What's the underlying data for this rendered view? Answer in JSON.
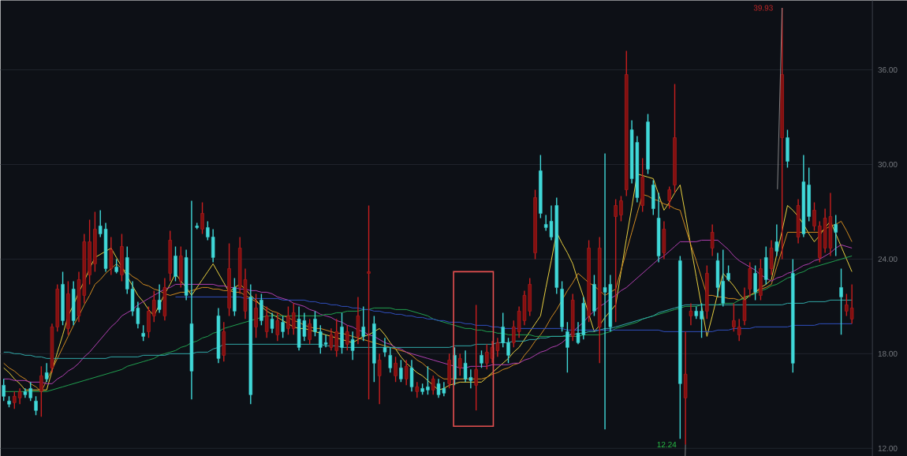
{
  "chart_data": {
    "type": "candlestick",
    "categories": [
      null,
      null,
      null,
      null,
      null,
      null,
      null,
      null,
      null,
      null,
      null,
      null,
      null,
      null,
      null,
      null,
      null,
      null,
      null,
      null,
      null,
      null,
      null,
      null,
      null,
      null,
      null,
      null,
      null,
      null,
      null,
      null,
      null,
      null,
      null,
      null,
      null,
      null,
      null,
      null,
      null,
      null,
      null,
      null,
      null,
      null,
      null,
      null,
      null,
      null,
      null,
      null,
      null,
      null,
      null,
      null,
      null,
      null,
      null,
      null,
      null,
      null,
      null,
      null,
      null,
      null,
      null,
      null,
      null,
      null,
      null,
      null,
      null,
      null,
      null,
      null,
      null,
      null,
      null,
      null,
      null,
      null,
      null,
      null,
      null,
      null,
      null,
      null,
      null,
      null,
      null,
      null,
      null,
      null,
      null,
      null,
      null,
      null,
      null,
      null,
      null,
      null,
      null,
      null,
      null,
      null,
      null,
      null,
      null,
      null,
      null,
      null,
      null,
      null,
      null,
      null,
      null,
      null,
      null,
      null,
      null,
      null,
      null,
      null,
      null,
      null,
      null,
      null,
      null,
      null,
      null,
      null,
      null,
      null,
      null,
      null,
      null,
      null,
      null,
      null,
      null,
      null,
      null,
      null,
      null,
      null,
      null,
      null,
      null,
      null,
      null,
      null,
      null,
      null,
      null,
      null,
      null,
      null,
      null
    ],
    "ohlc": [
      [
        16.0,
        16.4,
        15.0,
        15.3
      ],
      [
        15.0,
        15.3,
        14.6,
        14.8
      ],
      [
        14.9,
        15.6,
        14.5,
        15.3
      ],
      [
        15.2,
        15.8,
        14.8,
        15.6
      ],
      [
        15.6,
        15.8,
        15.2,
        15.4
      ],
      [
        15.8,
        16.2,
        15.0,
        15.2
      ],
      [
        15.0,
        15.3,
        14.1,
        14.4
      ],
      [
        15.6,
        17.2,
        14.0,
        16.6
      ],
      [
        16.8,
        17.4,
        16.2,
        16.4
      ],
      [
        17.1,
        19.9,
        16.8,
        19.7
      ],
      [
        19.7,
        22.4,
        19.4,
        22.1
      ],
      [
        22.4,
        23.2,
        19.8,
        20.1
      ],
      [
        19.6,
        22.6,
        19.2,
        21.8
      ],
      [
        22.1,
        22.6,
        19.8,
        20.1
      ],
      [
        20.4,
        23.2,
        20.0,
        22.7
      ],
      [
        21.7,
        25.6,
        21.2,
        25.1
      ],
      [
        23.0,
        26.5,
        22.4,
        25.1
      ],
      [
        23.7,
        27.0,
        23.2,
        25.9
      ],
      [
        26.1,
        27.1,
        25.4,
        25.6
      ],
      [
        25.9,
        26.3,
        23.2,
        23.4
      ],
      [
        23.4,
        25.4,
        23.0,
        24.6
      ],
      [
        23.5,
        24.0,
        23.1,
        23.2
      ],
      [
        23.0,
        25.6,
        22.6,
        24.8
      ],
      [
        24.1,
        24.8,
        21.8,
        22.1
      ],
      [
        22.1,
        22.6,
        20.4,
        20.7
      ],
      [
        20.9,
        21.3,
        19.6,
        19.9
      ],
      [
        19.3,
        19.8,
        18.8,
        19.1
      ],
      [
        19.4,
        21.0,
        19.0,
        20.7
      ],
      [
        20.4,
        22.0,
        20.0,
        21.4
      ],
      [
        21.4,
        22.4,
        20.6,
        20.8
      ],
      [
        20.4,
        22.8,
        20.1,
        22.2
      ],
      [
        23.1,
        25.8,
        22.6,
        25.2
      ],
      [
        24.2,
        24.8,
        22.6,
        22.9
      ],
      [
        22.6,
        24.8,
        22.2,
        24.2
      ],
      [
        24.1,
        24.6,
        21.4,
        21.7
      ],
      [
        19.9,
        27.7,
        15.1,
        16.9
      ],
      [
        26.1,
        26.3,
        25.9,
        26.0
      ],
      [
        25.9,
        27.6,
        25.6,
        26.9
      ],
      [
        26.0,
        26.4,
        25.2,
        25.4
      ],
      [
        25.4,
        25.9,
        23.8,
        24.1
      ],
      [
        20.4,
        20.9,
        17.4,
        17.7
      ],
      [
        17.9,
        20.0,
        17.5,
        19.4
      ],
      [
        20.9,
        25.0,
        20.4,
        23.4
      ],
      [
        22.2,
        22.8,
        20.4,
        20.7
      ],
      [
        22.2,
        25.4,
        21.8,
        24.7
      ],
      [
        20.7,
        23.4,
        20.2,
        22.7
      ],
      [
        21.6,
        22.4,
        14.8,
        15.4
      ],
      [
        19.7,
        21.8,
        19.0,
        20.9
      ],
      [
        21.4,
        21.8,
        19.8,
        20.1
      ],
      [
        19.4,
        21.0,
        19.0,
        20.4
      ],
      [
        20.2,
        20.6,
        19.3,
        19.6
      ],
      [
        19.2,
        20.6,
        18.8,
        20.1
      ],
      [
        20.0,
        20.4,
        19.0,
        19.4
      ],
      [
        19.6,
        21.0,
        19.2,
        20.4
      ],
      [
        19.6,
        21.2,
        19.2,
        20.6
      ],
      [
        20.2,
        21.0,
        18.2,
        18.4
      ],
      [
        20.1,
        20.6,
        18.8,
        19.1
      ],
      [
        18.9,
        20.2,
        18.6,
        19.9
      ],
      [
        20.2,
        20.7,
        19.1,
        19.4
      ],
      [
        19.4,
        19.8,
        18.0,
        18.4
      ],
      [
        18.7,
        19.2,
        18.4,
        18.6
      ],
      [
        18.4,
        19.6,
        18.2,
        19.2
      ],
      [
        18.2,
        20.2,
        17.8,
        19.4
      ],
      [
        19.7,
        20.6,
        18.0,
        18.4
      ],
      [
        18.6,
        19.8,
        18.2,
        19.4
      ],
      [
        18.9,
        19.4,
        17.6,
        18.2
      ],
      [
        19.1,
        21.6,
        18.6,
        20.4
      ],
      [
        19.7,
        21.0,
        18.8,
        19.1
      ],
      [
        23.1,
        27.4,
        15.1,
        23.2
      ],
      [
        19.9,
        20.4,
        16.2,
        17.4
      ],
      [
        16.6,
        18.0,
        14.8,
        17.6
      ],
      [
        18.4,
        19.0,
        17.8,
        18.1
      ],
      [
        17.9,
        18.4,
        16.8,
        17.1
      ],
      [
        16.6,
        17.8,
        16.2,
        17.4
      ],
      [
        17.1,
        17.6,
        16.2,
        16.4
      ],
      [
        16.4,
        17.6,
        16.0,
        17.2
      ],
      [
        17.1,
        17.6,
        15.6,
        15.9
      ],
      [
        15.6,
        16.2,
        15.2,
        15.9
      ],
      [
        15.8,
        16.1,
        15.4,
        15.6
      ],
      [
        15.9,
        17.2,
        15.4,
        15.7
      ],
      [
        15.7,
        16.6,
        15.4,
        16.4
      ],
      [
        16.1,
        16.4,
        15.2,
        15.4
      ],
      [
        15.8,
        16.2,
        15.3,
        15.5
      ],
      [
        16.1,
        18.0,
        15.8,
        17.6
      ],
      [
        17.9,
        18.4,
        16.0,
        16.4
      ],
      [
        17.1,
        18.0,
        16.6,
        17.7
      ],
      [
        17.4,
        18.2,
        16.2,
        16.4
      ],
      [
        16.5,
        17.0,
        15.8,
        16.3
      ],
      [
        16.0,
        21.1,
        14.4,
        17.0
      ],
      [
        17.9,
        18.2,
        17.1,
        17.4
      ],
      [
        17.4,
        18.6,
        17.0,
        18.1
      ],
      [
        17.7,
        18.8,
        17.4,
        18.4
      ],
      [
        18.2,
        19.0,
        17.8,
        18.7
      ],
      [
        19.7,
        20.6,
        18.4,
        18.7
      ],
      [
        18.7,
        19.0,
        17.4,
        17.9
      ],
      [
        18.7,
        20.1,
        18.4,
        19.7
      ],
      [
        19.4,
        21.0,
        19.0,
        20.7
      ],
      [
        20.1,
        22.0,
        19.8,
        21.7
      ],
      [
        20.7,
        22.8,
        20.4,
        22.4
      ],
      [
        24.4,
        28.4,
        24.0,
        27.9
      ],
      [
        29.6,
        30.6,
        26.6,
        26.9
      ],
      [
        26.2,
        26.8,
        25.8,
        26.0
      ],
      [
        26.4,
        27.4,
        25.2,
        25.4
      ],
      [
        27.4,
        27.9,
        21.8,
        22.2
      ],
      [
        22.1,
        22.6,
        19.4,
        19.7
      ],
      [
        19.4,
        20.0,
        16.8,
        18.4
      ],
      [
        19.1,
        21.8,
        18.8,
        21.4
      ],
      [
        19.3,
        20.0,
        18.6,
        18.7
      ],
      [
        21.2,
        21.6,
        18.9,
        19.2
      ],
      [
        20.4,
        25.2,
        20.0,
        24.7
      ],
      [
        22.4,
        23.0,
        20.4,
        20.7
      ],
      [
        19.7,
        25.4,
        17.4,
        24.7
      ],
      [
        22.2,
        30.7,
        13.2,
        21.9
      ],
      [
        22.4,
        23.0,
        19.4,
        19.7
      ],
      [
        26.7,
        27.8,
        20.0,
        27.4
      ],
      [
        26.8,
        28.0,
        26.4,
        27.7
      ],
      [
        28.4,
        37.2,
        28.0,
        35.7
      ],
      [
        32.2,
        32.8,
        28.8,
        29.1
      ],
      [
        31.4,
        31.8,
        27.6,
        27.9
      ],
      [
        27.4,
        30.4,
        27.0,
        29.2
      ],
      [
        32.7,
        33.2,
        29.4,
        29.7
      ],
      [
        28.7,
        29.0,
        26.8,
        27.2
      ],
      [
        26.6,
        28.2,
        23.8,
        24.2
      ],
      [
        24.4,
        26.4,
        24.0,
        25.9
      ],
      [
        27.7,
        28.6,
        27.2,
        28.4
      ],
      [
        28.7,
        35.1,
        28.2,
        31.7
      ],
      [
        23.9,
        24.2,
        12.6,
        16.1
      ],
      [
        15.2,
        19.4,
        12.24,
        16.7
      ],
      [
        20.4,
        21.2,
        19.8,
        20.7
      ],
      [
        20.7,
        21.0,
        20.2,
        20.4
      ],
      [
        20.7,
        21.2,
        19.0,
        20.2
      ],
      [
        20.7,
        23.6,
        20.2,
        23.1
      ],
      [
        24.7,
        26.2,
        24.2,
        25.7
      ],
      [
        23.9,
        24.4,
        21.6,
        22.2
      ],
      [
        22.6,
        24.6,
        21.0,
        21.2
      ],
      [
        23.1,
        23.6,
        22.6,
        22.7
      ],
      [
        19.7,
        21.2,
        19.4,
        20.1
      ],
      [
        19.2,
        20.2,
        18.8,
        19.7
      ],
      [
        20.1,
        22.2,
        19.8,
        21.4
      ],
      [
        22.1,
        23.8,
        21.6,
        23.4
      ],
      [
        23.1,
        23.6,
        21.4,
        21.9
      ],
      [
        21.7,
        24.0,
        21.4,
        23.4
      ],
      [
        24.1,
        24.8,
        22.4,
        22.7
      ],
      [
        23.4,
        25.2,
        23.0,
        24.7
      ],
      [
        25.1,
        26.2,
        24.2,
        24.5
      ],
      [
        31.7,
        39.93,
        24.0,
        35.7
      ],
      [
        31.7,
        32.2,
        29.8,
        30.2
      ],
      [
        23.1,
        24.0,
        16.8,
        17.4
      ],
      [
        25.4,
        27.8,
        25.0,
        27.4
      ],
      [
        28.9,
        30.6,
        25.4,
        25.6
      ],
      [
        28.7,
        29.8,
        26.4,
        26.7
      ],
      [
        26.1,
        27.6,
        25.8,
        27.1
      ],
      [
        24.1,
        26.4,
        23.8,
        26.1
      ],
      [
        24.7,
        27.2,
        24.4,
        26.6
      ],
      [
        24.7,
        28.2,
        24.2,
        26.7
      ],
      [
        26.2,
        26.8,
        24.2,
        25.7
      ],
      [
        22.2,
        23.4,
        19.2,
        21.6
      ],
      [
        20.7,
        21.8,
        20.4,
        21.1
      ],
      [
        20.2,
        22.4,
        19.9,
        20.9
      ]
    ],
    "series": [
      {
        "type": "line",
        "color": "#e8d040",
        "values": [
          17.1,
          16.8,
          16.4,
          16.1,
          15.7,
          15.7,
          15.7,
          15.7,
          15.7,
          16.9,
          18.1,
          19.2,
          20.4,
          21.1,
          21.9,
          22.6,
          23.4,
          24.1,
          24.3,
          24.5,
          24.7,
          24.1,
          23.5,
          22.9,
          22.3,
          21.7,
          21.3,
          20.8,
          20.4,
          21.1,
          21.8,
          22.4,
          23.1,
          22.6,
          22.2,
          21.7,
          22.2,
          22.7,
          23.2,
          23.7,
          23.1,
          22.5,
          21.9,
          22.2,
          22.4,
          22.1,
          21.7,
          21.4,
          21.0,
          20.7,
          20.5,
          20.3,
          20.1,
          19.9,
          19.7,
          19.6,
          19.6,
          19.5,
          19.4,
          19.3,
          19.2,
          19.1,
          19.0,
          18.9,
          18.8,
          18.7,
          18.9,
          19.1,
          19.2,
          19.4,
          19.6,
          19.2,
          18.7,
          18.3,
          17.8,
          17.4,
          17.1,
          16.8,
          16.6,
          16.3,
          16.0,
          15.7,
          15.8,
          16.0,
          16.1,
          16.2,
          16.2,
          16.2,
          16.2,
          16.2,
          16.5,
          16.8,
          17.1,
          17.4,
          17.7,
          18.1,
          18.4,
          18.9,
          19.4,
          19.9,
          20.4,
          22.2,
          23.9,
          25.7,
          25.0,
          24.4,
          23.7,
          22.6,
          21.6,
          20.5,
          19.4,
          19.8,
          20.3,
          20.7,
          21.1,
          23.2,
          25.3,
          27.3,
          29.4,
          29.3,
          29.2,
          29.1,
          28.1,
          27.1,
          27.6,
          28.2,
          28.7,
          26.8,
          24.8,
          22.9,
          21.0,
          19.1,
          20.4,
          21.8,
          23.1,
          22.7,
          22.3,
          21.8,
          21.4,
          21.7,
          21.9,
          22.2,
          22.4,
          22.7,
          24.3,
          25.8,
          27.4,
          27.1,
          26.7,
          26.2,
          25.6,
          25.1,
          25.5,
          26.0,
          26.4,
          25.6,
          24.8,
          24.0,
          23.2
        ]
      },
      {
        "type": "line",
        "color": "#d08a20",
        "values": [
          17.4,
          17.1,
          16.9,
          16.6,
          16.4,
          16.1,
          15.9,
          15.6,
          16.3,
          17.0,
          17.7,
          18.4,
          19.1,
          19.8,
          20.4,
          21.1,
          21.7,
          22.4,
          22.7,
          23.1,
          23.4,
          23.7,
          23.4,
          23.2,
          22.9,
          22.7,
          22.4,
          22.3,
          22.1,
          22.0,
          21.8,
          21.7,
          21.8,
          21.9,
          21.9,
          22.0,
          22.1,
          22.2,
          22.2,
          22.1,
          22.1,
          22.0,
          22.0,
          21.9,
          21.9,
          21.7,
          21.5,
          21.3,
          21.1,
          20.9,
          20.7,
          20.6,
          20.4,
          20.3,
          20.1,
          20.0,
          19.8,
          19.7,
          19.6,
          19.6,
          19.5,
          19.4,
          19.3,
          19.3,
          19.2,
          19.1,
          19.0,
          18.9,
          18.8,
          18.7,
          18.6,
          18.5,
          18.4,
          18.3,
          18.2,
          18.1,
          17.9,
          17.6,
          17.4,
          17.1,
          16.9,
          16.6,
          16.4,
          16.4,
          16.4,
          16.4,
          16.4,
          16.4,
          16.4,
          16.4,
          16.5,
          16.7,
          16.8,
          17.0,
          17.1,
          17.3,
          17.4,
          17.9,
          18.3,
          18.8,
          19.2,
          19.7,
          20.3,
          20.8,
          21.4,
          22.0,
          22.5,
          23.1,
          22.8,
          22.5,
          22.3,
          22.0,
          21.7,
          21.9,
          22.1,
          23.3,
          24.5,
          25.7,
          26.9,
          28.1,
          28.0,
          27.8,
          27.7,
          27.5,
          27.4,
          27.2,
          27.1,
          26.0,
          24.9,
          23.9,
          22.8,
          21.7,
          21.7,
          21.6,
          21.6,
          21.5,
          21.5,
          21.4,
          21.6,
          21.7,
          21.9,
          22.1,
          22.2,
          22.4,
          23.5,
          24.6,
          25.7,
          25.7,
          25.7,
          25.7,
          25.7,
          25.7,
          25.7,
          25.9,
          26.1,
          26.2,
          26.4,
          25.8,
          25.1
        ]
      },
      {
        "type": "line",
        "color": "#b040b0",
        "values": [
          16.4,
          16.4,
          16.3,
          16.3,
          16.3,
          16.2,
          16.2,
          16.2,
          16.1,
          16.1,
          16.4,
          16.6,
          16.9,
          17.1,
          17.4,
          17.8,
          18.1,
          18.5,
          18.9,
          19.3,
          19.7,
          20.0,
          20.4,
          20.6,
          20.8,
          21.1,
          21.3,
          21.5,
          21.7,
          21.9,
          22.1,
          22.2,
          22.4,
          22.4,
          22.4,
          22.4,
          22.4,
          22.4,
          22.4,
          22.4,
          22.3,
          22.3,
          22.2,
          22.2,
          22.1,
          22.1,
          22.0,
          22.0,
          21.9,
          21.9,
          21.8,
          21.6,
          21.5,
          21.4,
          21.2,
          21.1,
          21.0,
          20.8,
          20.7,
          20.5,
          20.4,
          20.3,
          20.1,
          20.0,
          19.8,
          19.7,
          19.5,
          19.4,
          19.2,
          19.1,
          18.9,
          18.7,
          18.6,
          18.4,
          18.3,
          18.1,
          18.0,
          17.9,
          17.8,
          17.7,
          17.6,
          17.5,
          17.4,
          17.3,
          17.2,
          17.1,
          17.1,
          17.2,
          17.2,
          17.2,
          17.2,
          17.3,
          17.3,
          17.3,
          17.3,
          17.4,
          17.4,
          17.6,
          17.7,
          17.9,
          18.1,
          18.2,
          18.4,
          18.5,
          18.7,
          19.0,
          19.4,
          19.7,
          20.0,
          20.4,
          20.7,
          21.0,
          21.2,
          21.5,
          21.7,
          22.0,
          22.2,
          22.5,
          22.8,
          23.1,
          23.4,
          23.7,
          24.0,
          24.2,
          24.5,
          24.8,
          25.1,
          25.1,
          25.1,
          25.1,
          25.2,
          25.2,
          25.2,
          25.2,
          24.9,
          24.6,
          24.2,
          23.9,
          23.7,
          23.5,
          23.3,
          23.0,
          22.8,
          22.6,
          22.8,
          22.9,
          23.1,
          23.2,
          23.4,
          23.6,
          23.7,
          23.9,
          24.0,
          24.2,
          24.4,
          24.7,
          24.9,
          24.8,
          24.7
        ]
      },
      {
        "type": "line",
        "color": "#20a050",
        "values": [
          15.6,
          15.6,
          15.6,
          15.6,
          15.6,
          15.6,
          15.6,
          15.6,
          15.6,
          15.7,
          15.8,
          15.9,
          16.0,
          16.1,
          16.2,
          16.3,
          16.4,
          16.5,
          16.6,
          16.7,
          16.8,
          16.9,
          17.0,
          17.2,
          17.3,
          17.4,
          17.5,
          17.6,
          17.7,
          17.9,
          18.0,
          18.1,
          18.2,
          18.4,
          18.5,
          18.7,
          18.8,
          19.0,
          19.1,
          19.3,
          19.4,
          19.6,
          19.7,
          19.8,
          19.9,
          20.0,
          20.1,
          20.2,
          20.3,
          20.4,
          20.4,
          20.4,
          20.4,
          20.4,
          20.4,
          20.4,
          20.4,
          20.4,
          20.4,
          20.4,
          20.5,
          20.5,
          20.6,
          20.6,
          20.7,
          20.7,
          20.7,
          20.8,
          20.8,
          20.9,
          20.9,
          20.9,
          20.9,
          20.8,
          20.8,
          20.8,
          20.7,
          20.6,
          20.5,
          20.4,
          20.2,
          20.1,
          20.0,
          19.9,
          19.8,
          19.7,
          19.6,
          19.6,
          19.5,
          19.5,
          19.4,
          19.4,
          19.3,
          19.3,
          19.2,
          19.2,
          19.2,
          19.2,
          19.2,
          19.1,
          19.1,
          19.1,
          19.1,
          19.1,
          19.1,
          19.1,
          19.1,
          19.1,
          19.2,
          19.2,
          19.2,
          19.2,
          19.3,
          19.4,
          19.6,
          19.7,
          19.8,
          19.9,
          20.0,
          20.2,
          20.3,
          20.4,
          20.5,
          20.6,
          20.7,
          20.8,
          20.9,
          21.0,
          21.0,
          21.0,
          21.1,
          21.1,
          21.1,
          21.1,
          21.2,
          21.2,
          21.2,
          21.4,
          21.5,
          21.7,
          21.8,
          22.0,
          22.1,
          22.3,
          22.4,
          22.6,
          22.8,
          22.9,
          23.1,
          23.2,
          23.4,
          23.5,
          23.6,
          23.7,
          23.8,
          23.9,
          24.0,
          24.1,
          24.2
        ]
      },
      {
        "type": "line",
        "color": "#30a8a8",
        "values": [
          18.1,
          18.1,
          18.0,
          18.0,
          17.9,
          17.9,
          17.8,
          17.8,
          17.7,
          17.7,
          17.7,
          17.7,
          17.7,
          17.7,
          17.7,
          17.7,
          17.7,
          17.7,
          17.7,
          17.7,
          17.8,
          17.8,
          17.8,
          17.8,
          17.8,
          17.8,
          17.9,
          17.9,
          17.9,
          17.9,
          17.9,
          18.0,
          18.0,
          18.0,
          18.0,
          18.0,
          18.1,
          18.1,
          18.1,
          18.3,
          18.4,
          18.6,
          18.6,
          18.6,
          18.6,
          18.6,
          18.6,
          18.6,
          18.6,
          18.6,
          18.6,
          18.6,
          18.6,
          18.6,
          18.6,
          18.6,
          18.6,
          18.6,
          18.6,
          18.6,
          18.5,
          18.5,
          18.5,
          18.4,
          18.4,
          18.4,
          18.4,
          18.4,
          18.4,
          18.4,
          18.4,
          18.4,
          18.4,
          18.4,
          18.4,
          18.4,
          18.4,
          18.4,
          18.4,
          18.4,
          18.4,
          18.4,
          18.4,
          18.4,
          18.5,
          18.5,
          18.5,
          18.5,
          18.6,
          18.6,
          18.6,
          18.6,
          18.7,
          18.7,
          18.7,
          18.8,
          18.8,
          18.8,
          18.9,
          18.9,
          19.0,
          19.0,
          19.1,
          19.1,
          19.1,
          19.2,
          19.2,
          19.3,
          19.3,
          19.4,
          19.4,
          19.5,
          19.6,
          19.6,
          19.7,
          19.8,
          19.9,
          20.0,
          20.1,
          20.2,
          20.3,
          20.4,
          20.6,
          20.7,
          20.8,
          20.9,
          21.0,
          21.1,
          21.1,
          21.1,
          21.1,
          21.1,
          21.1,
          21.1,
          21.1,
          21.1,
          21.1,
          21.1,
          21.1,
          21.1,
          21.1,
          21.1,
          21.1,
          21.1,
          21.1,
          21.1,
          21.2,
          21.2,
          21.2,
          21.2,
          21.3,
          21.3,
          21.3,
          21.3,
          21.4,
          21.4,
          21.4,
          21.4,
          21.4
        ]
      },
      {
        "type": "line",
        "color": "#3050c0",
        "values": [
          null,
          null,
          null,
          null,
          null,
          null,
          null,
          null,
          null,
          null,
          null,
          null,
          null,
          null,
          null,
          null,
          null,
          null,
          null,
          null,
          null,
          null,
          null,
          null,
          null,
          null,
          null,
          null,
          null,
          null,
          null,
          null,
          21.6,
          21.6,
          21.6,
          21.6,
          21.6,
          21.6,
          21.6,
          21.6,
          21.6,
          21.6,
          21.6,
          21.6,
          21.6,
          21.5,
          21.5,
          21.5,
          21.5,
          21.5,
          21.5,
          21.5,
          21.4,
          21.4,
          21.4,
          21.4,
          21.4,
          21.3,
          21.3,
          21.2,
          21.2,
          21.1,
          21.1,
          21.0,
          21.0,
          20.9,
          20.9,
          20.8,
          20.8,
          20.7,
          20.7,
          20.6,
          20.6,
          20.5,
          20.5,
          20.4,
          20.4,
          20.3,
          20.3,
          20.2,
          20.2,
          20.1,
          20.1,
          20.0,
          20.0,
          20.0,
          19.9,
          19.9,
          19.8,
          19.8,
          19.8,
          19.7,
          19.7,
          19.6,
          19.6,
          19.6,
          19.6,
          19.6,
          19.6,
          19.6,
          19.6,
          19.6,
          19.6,
          19.6,
          19.6,
          19.5,
          19.5,
          19.5,
          19.5,
          19.5,
          19.5,
          19.5,
          19.5,
          19.5,
          19.5,
          19.5,
          19.5,
          19.5,
          19.5,
          19.5,
          19.5,
          19.5,
          19.5,
          19.4,
          19.4,
          19.4,
          19.4,
          19.4,
          19.4,
          19.4,
          19.4,
          19.4,
          19.4,
          19.5,
          19.5,
          19.5,
          19.6,
          19.6,
          19.6,
          19.6,
          19.7,
          19.7,
          19.7,
          19.7,
          19.7,
          19.7,
          19.7,
          19.8,
          19.8,
          19.8,
          19.8,
          19.8,
          19.9,
          19.9,
          19.9,
          19.9,
          19.9,
          19.9,
          19.9
        ]
      }
    ],
    "annotations": [
      "39.93",
      "12.24"
    ],
    "ylim": [
      11.5,
      40.4
    ],
    "yticks": [
      {
        "value": 12,
        "label": "12.00"
      },
      {
        "value": 18,
        "label": "18.00"
      },
      {
        "value": 24,
        "label": "24.00"
      },
      {
        "value": 30,
        "label": "30.00"
      },
      {
        "value": 36,
        "label": "36.00"
      }
    ],
    "grid": "y",
    "tick_labels": "y"
  }
}
